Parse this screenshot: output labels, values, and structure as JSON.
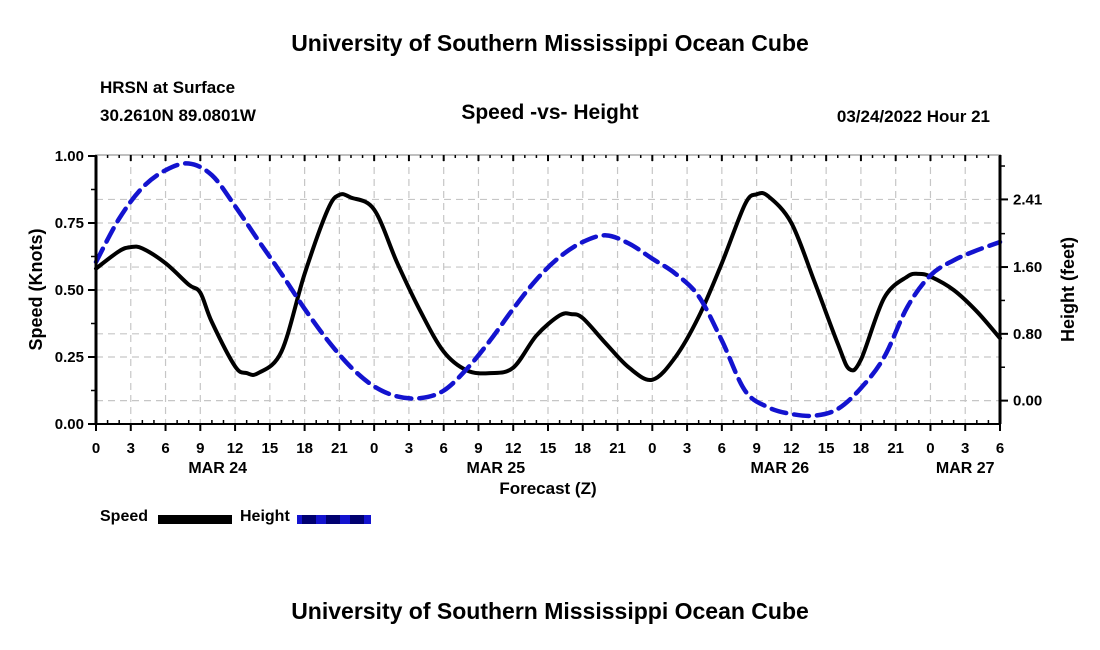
{
  "page": {
    "top_title": "University of Southern Mississippi Ocean Cube",
    "station_line1": "HRSN at Surface",
    "station_line2": "30.2610N  89.0801W",
    "chart_title": "Speed -vs- Height",
    "datetime_label": "03/24/2022 Hour 21",
    "bottom_title": "University of Southern Mississippi Ocean Cube"
  },
  "legend": {
    "speed_label": "Speed",
    "height_label": "Height"
  },
  "colors": {
    "speed": "#000000",
    "height": "#1313CF",
    "grid": "#C6C6C6",
    "frame": "#000000",
    "top_frame": "#999999"
  },
  "chart_data": {
    "type": "line",
    "title": "Speed -vs- Height",
    "xlabel": "Forecast (Z)",
    "x_range": [
      0,
      78
    ],
    "x_major_tick_hours": 3,
    "x_minor_tick_hours": 1,
    "x_tick_labels": [
      "0",
      "3",
      "6",
      "9",
      "12",
      "15",
      "18",
      "21",
      "0",
      "3",
      "6",
      "9",
      "12",
      "15",
      "18",
      "21",
      "0",
      "3",
      "6",
      "9",
      "12",
      "15",
      "18",
      "21",
      "0",
      "3",
      "6"
    ],
    "day_labels": [
      {
        "label": "MAR 24",
        "center_hour": 10.5
      },
      {
        "label": "MAR 25",
        "center_hour": 34.5
      },
      {
        "label": "MAR 26",
        "center_hour": 59
      },
      {
        "label": "MAR 27",
        "center_hour": 75
      }
    ],
    "left_axis": {
      "label": "Speed (Knots)",
      "range": [
        0,
        1
      ],
      "tick_labels": [
        "0.00",
        "0.25",
        "0.50",
        "0.75",
        "1.00"
      ],
      "tick_values": [
        0,
        0.25,
        0.5,
        0.75,
        1
      ],
      "minor_tick_values": [
        0.125,
        0.375,
        0.625,
        0.875
      ]
    },
    "right_axis": {
      "label": "Height (feet)",
      "range": [
        -0.28,
        2.93
      ],
      "tick_labels": [
        "0.00",
        "0.80",
        "1.60",
        "2.41"
      ],
      "tick_values": [
        0,
        0.8,
        1.6,
        2.41
      ],
      "minor_tick_values": [
        0.4,
        1.2,
        2.0,
        2.81
      ]
    },
    "grid": true,
    "legend_position": "below-left",
    "series": [
      {
        "name": "Speed",
        "axis": "left",
        "line": "solid",
        "color": "#000000",
        "x": [
          0,
          2,
          3,
          4,
          6,
          8,
          9,
          10,
          12,
          13,
          14,
          16,
          18,
          20,
          21,
          22,
          24,
          26,
          28,
          30,
          32,
          34,
          36,
          38,
          40,
          41,
          42,
          44,
          46,
          48,
          50,
          52,
          54,
          56,
          57,
          58,
          60,
          62,
          64,
          65,
          66,
          68,
          70,
          71,
          72,
          74,
          76,
          78
        ],
        "values": [
          0.58,
          0.645,
          0.66,
          0.655,
          0.6,
          0.52,
          0.49,
          0.38,
          0.215,
          0.19,
          0.19,
          0.27,
          0.56,
          0.8,
          0.855,
          0.845,
          0.8,
          0.6,
          0.42,
          0.27,
          0.2,
          0.19,
          0.21,
          0.33,
          0.405,
          0.41,
          0.395,
          0.3,
          0.21,
          0.165,
          0.25,
          0.4,
          0.6,
          0.82,
          0.857,
          0.85,
          0.75,
          0.53,
          0.3,
          0.205,
          0.24,
          0.47,
          0.55,
          0.56,
          0.55,
          0.5,
          0.42,
          0.32
        ]
      },
      {
        "name": "Height",
        "axis": "right",
        "line": "dashed",
        "color": "#1313CF",
        "x": [
          0,
          2,
          4,
          6,
          8,
          10,
          12,
          14,
          16,
          18,
          20,
          22,
          24,
          26,
          28,
          30,
          32,
          34,
          36,
          38,
          40,
          42,
          44,
          46,
          48,
          50,
          52,
          54,
          56,
          58,
          60,
          62,
          64,
          66,
          68,
          70,
          72,
          74,
          76,
          78
        ],
        "values": [
          1.66,
          2.18,
          2.55,
          2.76,
          2.84,
          2.7,
          2.33,
          1.92,
          1.52,
          1.1,
          0.72,
          0.4,
          0.17,
          0.05,
          0.03,
          0.12,
          0.38,
          0.72,
          1.1,
          1.45,
          1.72,
          1.9,
          1.98,
          1.88,
          1.7,
          1.52,
          1.25,
          0.72,
          0.12,
          -0.08,
          -0.16,
          -0.18,
          -0.1,
          0.15,
          0.52,
          1.12,
          1.5,
          1.68,
          1.8,
          1.9
        ]
      }
    ]
  }
}
